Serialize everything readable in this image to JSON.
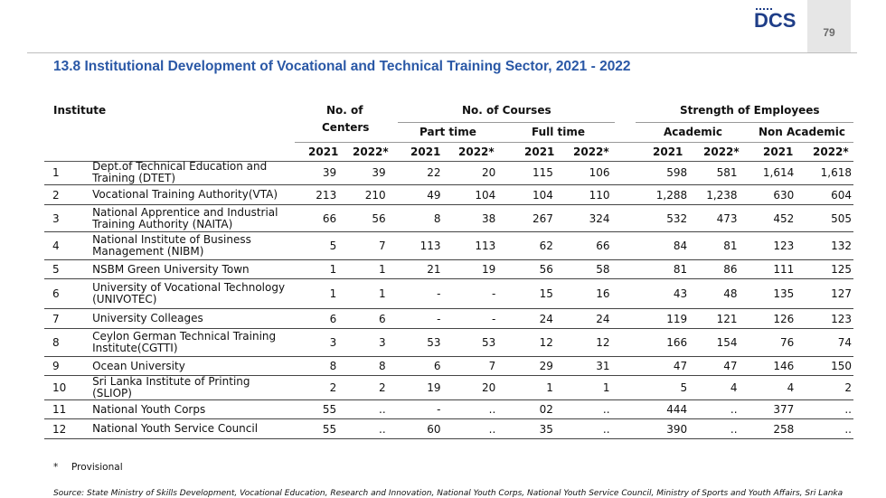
{
  "header": {
    "logo_text": "DCS",
    "page_number": "79"
  },
  "title": "13.8 Institutional Development of Vocational and Technical Training Sector, 2021 - 2022",
  "columns": {
    "institute": "Institute",
    "no_of": "No. of",
    "centers": "Centers",
    "no_of_courses": "No. of Courses",
    "part_time": "Part time",
    "full_time": "Full time",
    "strength": "Strength of Employees",
    "academic": "Academic",
    "non_academic": "Non Academic",
    "years": [
      "2021",
      "2022*",
      "2021",
      "2022*",
      "2021",
      "2022*",
      "2021",
      "2022*",
      "2021",
      "2022*"
    ]
  },
  "rows": [
    {
      "no": "1",
      "name": "Dept.of Technical Education and Training  (DTET)",
      "v": [
        "39",
        "39",
        "22",
        "20",
        "115",
        "106",
        "598",
        "581",
        "1,614",
        "1,618"
      ]
    },
    {
      "no": "2",
      "name": "Vocational Training Authority(VTA)",
      "v": [
        "213",
        "210",
        "49",
        "104",
        "104",
        "110",
        "1,288",
        "1,238",
        "630",
        "604"
      ]
    },
    {
      "no": "3",
      "name": "National Apprentice and Industrial Training Authority (NAITA)",
      "v": [
        "66",
        "56",
        "8",
        "38",
        "267",
        "324",
        "532",
        "473",
        "452",
        "505"
      ]
    },
    {
      "no": "4",
      "name": "National Institute of Business Management (NIBM)",
      "v": [
        "5",
        "7",
        "113",
        "113",
        "62",
        "66",
        "84",
        "81",
        "123",
        "132"
      ]
    },
    {
      "no": "5",
      "name": "NSBM Green University Town",
      "v": [
        "1",
        "1",
        "21",
        "19",
        "56",
        "58",
        "81",
        "86",
        "111",
        "125"
      ]
    },
    {
      "no": "6",
      "name": "University of Vocational Technology (UNIVOTEC)",
      "v": [
        "1",
        "1",
        "-",
        "-",
        "15",
        "16",
        "43",
        "48",
        "135",
        "127"
      ]
    },
    {
      "no": "7",
      "name": "University Colleages",
      "v": [
        "6",
        "6",
        "-",
        "-",
        "24",
        "24",
        "119",
        "121",
        "126",
        "123"
      ]
    },
    {
      "no": "8",
      "name": "Ceylon German Technical Training Institute(CGTTI)",
      "v": [
        "3",
        "3",
        "53",
        "53",
        "12",
        "12",
        "166",
        "154",
        "76",
        "74"
      ]
    },
    {
      "no": "9",
      "name": "Ocean University",
      "v": [
        "8",
        "8",
        "6",
        "7",
        "29",
        "31",
        "47",
        "47",
        "146",
        "150"
      ]
    },
    {
      "no": "10",
      "name": "Sri Lanka Institute of Printing (SLIOP)",
      "v": [
        "2",
        "2",
        "19",
        "20",
        "1",
        "1",
        "5",
        "4",
        "4",
        "2"
      ]
    },
    {
      "no": "11",
      "name": "National Youth Corps",
      "v": [
        "55",
        "..",
        "-",
        "..",
        "02",
        "..",
        "444",
        "..",
        "377",
        ".."
      ]
    },
    {
      "no": "12",
      "name": "National Youth Service Council",
      "v": [
        "55",
        "..",
        "60",
        "..",
        "35",
        "..",
        "390",
        "..",
        "258",
        ".."
      ]
    }
  ],
  "footnote": {
    "mark": "*",
    "text": "Provisional"
  },
  "source": "Source: State Ministry of Skills Development, Vocational Education, Research and Innovation, National Youth Corps, National Youth Service Council, Ministry of Sports and Youth Affairs, Sri Lanka"
}
